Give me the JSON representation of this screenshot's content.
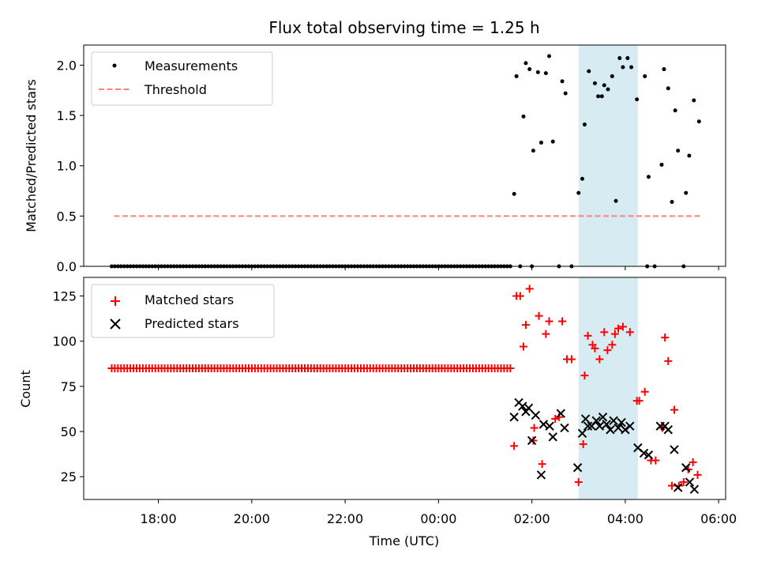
{
  "chart_data": {
    "title": "Flux total observing time = 1.25 h",
    "xlabel": "Time (UTC)",
    "x_unit": "hours since 17:00 UTC",
    "x_range": [
      -0.6,
      13.15
    ],
    "x_ticks": [
      {
        "value": 1,
        "label": "18:00"
      },
      {
        "value": 3,
        "label": "20:00"
      },
      {
        "value": 5,
        "label": "22:00"
      },
      {
        "value": 7,
        "label": "00:00"
      },
      {
        "value": 9,
        "label": "02:00"
      },
      {
        "value": 11,
        "label": "04:00"
      },
      {
        "value": 13,
        "label": "06:00"
      }
    ],
    "highlight_span": {
      "start": 10.0,
      "end": 11.27,
      "color": "#add8e6"
    },
    "top": {
      "type": "scatter",
      "ylabel": "Matched/Predicted stars",
      "ylim": [
        0,
        2.2
      ],
      "y_ticks": [
        {
          "value": 0,
          "label": "0.0"
        },
        {
          "value": 0.5,
          "label": "0.5"
        },
        {
          "value": 1.0,
          "label": "1.0"
        },
        {
          "value": 1.5,
          "label": "1.5"
        },
        {
          "value": 2.0,
          "label": "2.0"
        }
      ],
      "legend": {
        "position": "upper-left",
        "entries": [
          "Measurements",
          "Threshold"
        ]
      },
      "threshold": {
        "name": "Threshold",
        "value": 0.5,
        "x_start": 0.05,
        "x_end": 12.6,
        "color": "#ff8080"
      },
      "measurements": {
        "name": "Measurements",
        "color": "#000000",
        "zero_run": {
          "start": 0.0,
          "end": 8.55,
          "step": 0.0667,
          "value": 0
        },
        "points": [
          [
            8.62,
            0.72
          ],
          [
            8.67,
            1.89
          ],
          [
            8.75,
            0
          ],
          [
            8.82,
            1.49
          ],
          [
            8.87,
            2.02
          ],
          [
            8.95,
            1.96
          ],
          [
            9.0,
            0
          ],
          [
            9.03,
            1.15
          ],
          [
            9.13,
            1.93
          ],
          [
            9.2,
            1.23
          ],
          [
            9.3,
            1.92
          ],
          [
            9.37,
            2.09
          ],
          [
            9.45,
            1.24
          ],
          [
            9.58,
            0
          ],
          [
            9.65,
            1.84
          ],
          [
            9.72,
            1.72
          ],
          [
            9.85,
            0
          ],
          [
            10.0,
            0.73
          ],
          [
            10.08,
            0.87
          ],
          [
            10.13,
            1.41
          ],
          [
            10.22,
            1.94
          ],
          [
            10.35,
            1.82
          ],
          [
            10.42,
            1.69
          ],
          [
            10.5,
            1.69
          ],
          [
            10.55,
            1.8
          ],
          [
            10.63,
            1.76
          ],
          [
            10.72,
            1.89
          ],
          [
            10.8,
            0.65
          ],
          [
            10.88,
            2.07
          ],
          [
            10.95,
            1.98
          ],
          [
            11.05,
            2.07
          ],
          [
            11.13,
            1.98
          ],
          [
            11.25,
            1.66
          ],
          [
            11.42,
            1.89
          ],
          [
            11.47,
            0
          ],
          [
            11.5,
            0.89
          ],
          [
            11.63,
            0
          ],
          [
            11.78,
            1.01
          ],
          [
            11.83,
            1.96
          ],
          [
            11.92,
            1.77
          ],
          [
            12.0,
            0.64
          ],
          [
            12.07,
            1.55
          ],
          [
            12.13,
            1.15
          ],
          [
            12.25,
            0
          ],
          [
            12.3,
            0.73
          ],
          [
            12.37,
            1.1
          ],
          [
            12.47,
            1.65
          ],
          [
            12.58,
            1.44
          ]
        ]
      }
    },
    "bottom": {
      "type": "scatter",
      "ylabel": "Count",
      "ylim": [
        12.4,
        135.3
      ],
      "y_ticks": [
        {
          "value": 25,
          "label": "25"
        },
        {
          "value": 50,
          "label": "50"
        },
        {
          "value": 75,
          "label": "75"
        },
        {
          "value": 100,
          "label": "100"
        },
        {
          "value": 125,
          "label": "125"
        }
      ],
      "legend": {
        "position": "upper-left",
        "entries": [
          "Matched stars",
          "Predicted stars"
        ]
      },
      "matched": {
        "name": "Matched stars",
        "marker": "+",
        "color": "#ff0000",
        "constant_run": {
          "start": 0.0,
          "end": 8.55,
          "step": 0.0667,
          "value": 85
        },
        "points": [
          [
            8.62,
            42
          ],
          [
            8.67,
            125
          ],
          [
            8.75,
            125
          ],
          [
            8.82,
            97
          ],
          [
            8.87,
            109
          ],
          [
            8.95,
            129
          ],
          [
            9.03,
            45
          ],
          [
            9.05,
            52
          ],
          [
            9.15,
            114
          ],
          [
            9.22,
            32
          ],
          [
            9.3,
            104
          ],
          [
            9.37,
            111
          ],
          [
            9.5,
            57
          ],
          [
            9.58,
            58
          ],
          [
            9.65,
            111
          ],
          [
            9.75,
            90
          ],
          [
            9.85,
            90
          ],
          [
            10.0,
            22
          ],
          [
            10.1,
            43
          ],
          [
            10.13,
            81
          ],
          [
            10.2,
            103
          ],
          [
            10.3,
            98
          ],
          [
            10.35,
            96
          ],
          [
            10.45,
            90
          ],
          [
            10.55,
            105
          ],
          [
            10.62,
            95
          ],
          [
            10.72,
            98
          ],
          [
            10.78,
            104
          ],
          [
            10.85,
            107
          ],
          [
            10.95,
            108
          ],
          [
            11.1,
            105
          ],
          [
            11.25,
            67
          ],
          [
            11.3,
            67
          ],
          [
            11.42,
            72
          ],
          [
            11.55,
            34
          ],
          [
            11.65,
            34
          ],
          [
            11.8,
            52
          ],
          [
            11.85,
            102
          ],
          [
            11.92,
            89
          ],
          [
            12.0,
            20
          ],
          [
            12.05,
            62
          ],
          [
            12.15,
            20
          ],
          [
            12.25,
            22
          ],
          [
            12.35,
            29
          ],
          [
            12.45,
            33
          ],
          [
            12.55,
            26
          ]
        ]
      },
      "predicted": {
        "name": "Predicted stars",
        "marker": "x",
        "color": "#000000",
        "points": [
          [
            8.62,
            58
          ],
          [
            8.72,
            66
          ],
          [
            8.8,
            64
          ],
          [
            8.87,
            61
          ],
          [
            8.93,
            63
          ],
          [
            9.0,
            45
          ],
          [
            9.08,
            59
          ],
          [
            9.2,
            26
          ],
          [
            9.25,
            54
          ],
          [
            9.38,
            53
          ],
          [
            9.45,
            47
          ],
          [
            9.62,
            60
          ],
          [
            9.7,
            52
          ],
          [
            9.98,
            30
          ],
          [
            10.08,
            49
          ],
          [
            10.15,
            57
          ],
          [
            10.2,
            53
          ],
          [
            10.28,
            53
          ],
          [
            10.38,
            56
          ],
          [
            10.45,
            53
          ],
          [
            10.52,
            58
          ],
          [
            10.6,
            54
          ],
          [
            10.68,
            51
          ],
          [
            10.75,
            56
          ],
          [
            10.85,
            52
          ],
          [
            10.92,
            55
          ],
          [
            11.0,
            51
          ],
          [
            11.1,
            53
          ],
          [
            11.27,
            41
          ],
          [
            11.4,
            38
          ],
          [
            11.5,
            37
          ],
          [
            11.75,
            53
          ],
          [
            11.85,
            53
          ],
          [
            11.92,
            51
          ],
          [
            12.05,
            40
          ],
          [
            12.13,
            19
          ],
          [
            12.3,
            30
          ],
          [
            12.38,
            22
          ],
          [
            12.48,
            18
          ]
        ]
      }
    }
  }
}
